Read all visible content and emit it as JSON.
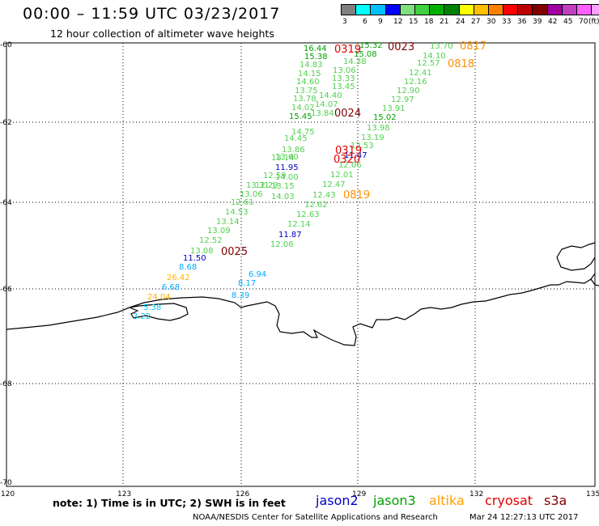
{
  "title": "00:00 – 11:59 UTC 03/23/2017",
  "subtitle": "12 hour collection of altimeter wave heights",
  "legend": {
    "colors": [
      "#808080",
      "#00ffff",
      "#00c0ff",
      "#0000ff",
      "#80e080",
      "#40d040",
      "#00b000",
      "#008000",
      "#ffff00",
      "#ffc000",
      "#ff8000",
      "#ff0000",
      "#c00000",
      "#800000",
      "#a000a0",
      "#c040c0",
      "#ff60ff",
      "#ffa0ff",
      "#000000"
    ],
    "labels": [
      "3",
      "6",
      "9",
      "12",
      "15",
      "18",
      "21",
      "24",
      "27",
      "30",
      "33",
      "36",
      "39",
      "42",
      "45",
      "70",
      "(ft)"
    ]
  },
  "axes": {
    "lat_labels": [
      "-60",
      "-62",
      "-64",
      "-66",
      "-68",
      "-70"
    ],
    "lon_labels": [
      "120",
      "123",
      "126",
      "129",
      "132",
      "135"
    ]
  },
  "points": [
    {
      "t": "16.44",
      "c": "#00a000"
    },
    {
      "t": "15.38",
      "c": "#00a000"
    },
    {
      "t": "14.83",
      "c": "#50d050"
    },
    {
      "t": "14.15",
      "c": "#50d050"
    },
    {
      "t": "14.60",
      "c": "#50d050"
    },
    {
      "t": "13.75",
      "c": "#50d050"
    },
    {
      "t": "13.78",
      "c": "#50d050"
    },
    {
      "t": "14.02",
      "c": "#50d050"
    },
    {
      "t": "15.45",
      "c": "#00a000"
    },
    {
      "t": "14.75",
      "c": "#50d050"
    },
    {
      "t": "13.84",
      "c": "#50d050"
    },
    {
      "t": "14.07",
      "c": "#50d050"
    },
    {
      "t": "13.45",
      "c": "#50d050"
    },
    {
      "t": "13.33",
      "c": "#50d050"
    },
    {
      "t": "13.06",
      "c": "#50d050"
    },
    {
      "t": "14.38",
      "c": "#50d050"
    },
    {
      "t": "15.08",
      "c": "#00a000"
    },
    {
      "t": "15.32",
      "c": "#00a000"
    },
    {
      "t": "14.40",
      "c": "#50d050"
    },
    {
      "t": "13.70",
      "c": "#50d050"
    },
    {
      "t": "14.10",
      "c": "#50d050"
    },
    {
      "t": "12.57",
      "c": "#50d050"
    },
    {
      "t": "12.41",
      "c": "#50d050"
    },
    {
      "t": "12.16",
      "c": "#50d050"
    },
    {
      "t": "12.90",
      "c": "#50d050"
    },
    {
      "t": "12.97",
      "c": "#50d050"
    },
    {
      "t": "13.91",
      "c": "#50d050"
    },
    {
      "t": "15.02",
      "c": "#00a000"
    },
    {
      "t": "13.98",
      "c": "#50d050"
    },
    {
      "t": "13.19",
      "c": "#50d050"
    },
    {
      "t": "12.53",
      "c": "#50d050"
    },
    {
      "t": "11.47",
      "c": "#0000c0"
    },
    {
      "t": "12.06",
      "c": "#50d050"
    },
    {
      "t": "12.01",
      "c": "#50d050"
    },
    {
      "t": "12.47",
      "c": "#50d050"
    },
    {
      "t": "12.43",
      "c": "#50d050"
    },
    {
      "t": "12.62",
      "c": "#50d050"
    },
    {
      "t": "12.63",
      "c": "#50d050"
    },
    {
      "t": "12.14",
      "c": "#50d050"
    },
    {
      "t": "11.87",
      "c": "#0000c0"
    },
    {
      "t": "12.06",
      "c": "#50d050"
    },
    {
      "t": "14.45",
      "c": "#50d050"
    },
    {
      "t": "13.86",
      "c": "#50d050"
    },
    {
      "t": "13.60",
      "c": "#50d050"
    },
    {
      "t": "13.14",
      "c": "#50d050"
    },
    {
      "t": "12.59",
      "c": "#50d050"
    },
    {
      "t": "11.95",
      "c": "#0000c0"
    },
    {
      "t": "14.00",
      "c": "#50d050"
    },
    {
      "t": "13.15",
      "c": "#50d050"
    },
    {
      "t": "14.03",
      "c": "#50d050"
    },
    {
      "t": "12.29",
      "c": "#50d050"
    },
    {
      "t": "13.31",
      "c": "#50d050"
    },
    {
      "t": "13.06",
      "c": "#50d050"
    },
    {
      "t": "12.61",
      "c": "#50d050"
    },
    {
      "t": "14.53",
      "c": "#50d050"
    },
    {
      "t": "13.14",
      "c": "#50d050"
    },
    {
      "t": "13.09",
      "c": "#50d050"
    },
    {
      "t": "12.52",
      "c": "#50d050"
    },
    {
      "t": "13.08",
      "c": "#50d050"
    },
    {
      "t": "11.50",
      "c": "#0000c0"
    },
    {
      "t": "8.68",
      "c": "#00a8ff"
    },
    {
      "t": "26.42",
      "c": "#ffb000"
    },
    {
      "t": "6.68",
      "c": "#00a8ff"
    },
    {
      "t": "24.04",
      "c": "#ffb000"
    },
    {
      "t": "5.38",
      "c": "#00c8ff"
    },
    {
      "t": "3.22",
      "c": "#00c8ff"
    },
    {
      "t": "6.94",
      "c": "#00a8ff"
    },
    {
      "t": "8.17",
      "c": "#00a8ff"
    },
    {
      "t": "8.39",
      "c": "#00a8ff"
    }
  ],
  "passes": [
    {
      "t": "0319",
      "c": "#e00000"
    },
    {
      "t": "0023",
      "c": "#800000"
    },
    {
      "t": "0817",
      "c": "#ff9000"
    },
    {
      "t": "0818",
      "c": "#ff9000"
    },
    {
      "t": "0024",
      "c": "#800000"
    },
    {
      "t": "0319",
      "c": "#e00000"
    },
    {
      "t": "0320",
      "c": "#e00000"
    },
    {
      "t": "0819",
      "c": "#ff9000"
    },
    {
      "t": "0025",
      "c": "#800000"
    }
  ],
  "note": "note: 1) Time is in UTC; 2) SWH is in feet",
  "satellites": [
    {
      "name": "jason2",
      "color": "#0000c8"
    },
    {
      "name": "jason3",
      "color": "#00a000"
    },
    {
      "name": "altika",
      "color": "#ffa000"
    },
    {
      "name": "cryosat",
      "color": "#e00000"
    },
    {
      "name": "s3a",
      "color": "#800000"
    }
  ],
  "credit": "NOAA/NESDIS Center for Satellite Applications and Research",
  "timestamp": "Mar 24 12:27:13 UTC 2017"
}
